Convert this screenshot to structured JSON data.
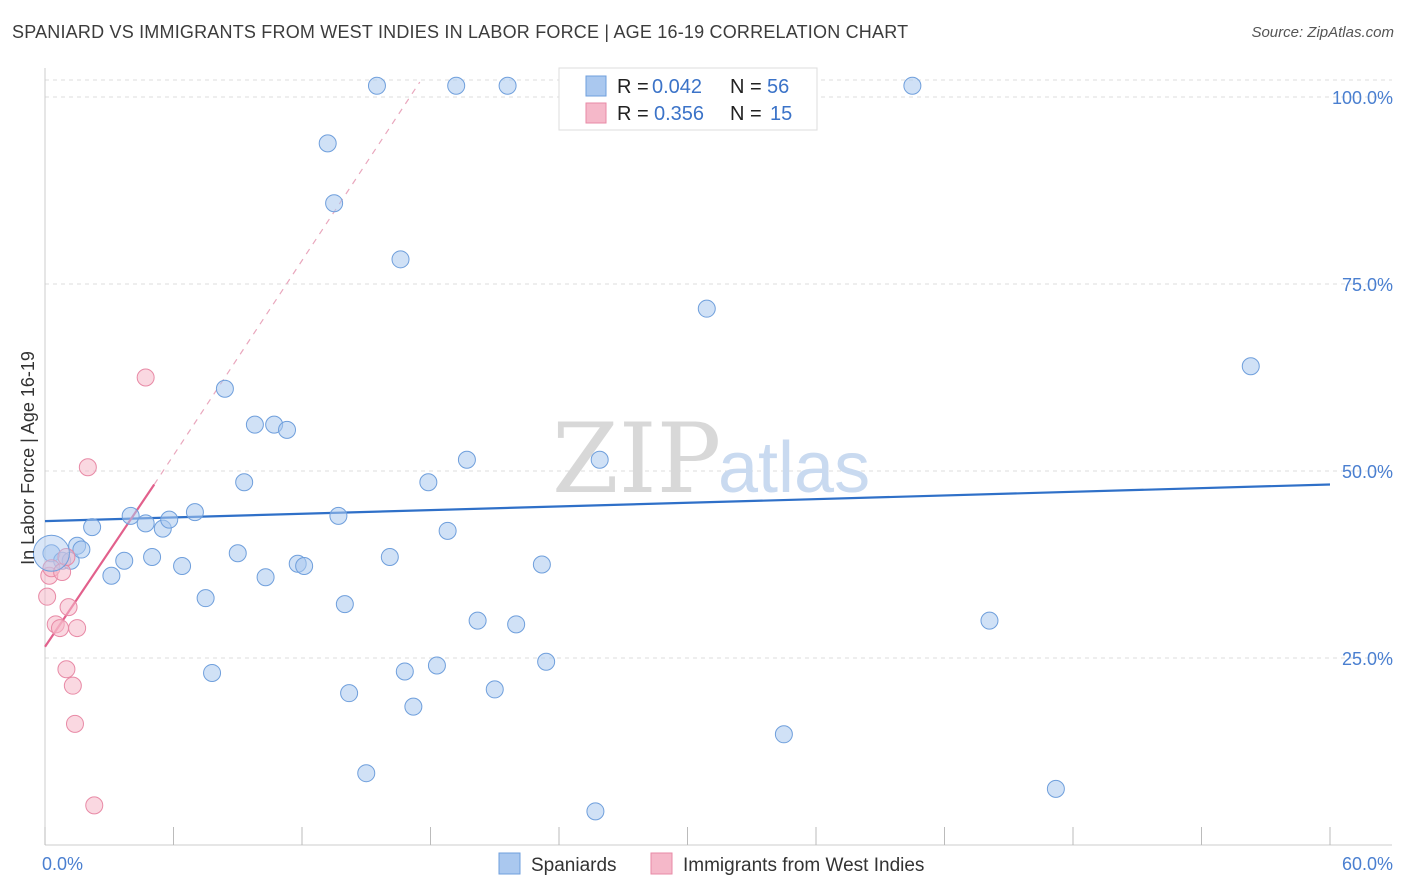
{
  "title": "SPANIARD VS IMMIGRANTS FROM WEST INDIES IN LABOR FORCE | AGE 16-19 CORRELATION CHART",
  "source": "Source: ZipAtlas.com",
  "watermark": {
    "zip": "ZIP",
    "atlas": "atlas"
  },
  "colors": {
    "blue_fill": "#aac8ef",
    "blue_stroke": "#6f9fdc",
    "blue_line": "#2f70c8",
    "pink_fill": "#f5b8c9",
    "pink_stroke": "#e88aa6",
    "pink_line": "#e2608c",
    "grid": "#dddddd",
    "axis_label": "#4a7fd0"
  },
  "legend": {
    "rows": [
      {
        "r_label": "R = ",
        "r_value": "0.042",
        "n_label": "N = ",
        "n_value": "56",
        "series": "blue"
      },
      {
        "r_label": "R = ",
        "r_value": "0.356",
        "n_label": "N = ",
        "n_value": "15",
        "series": "pink"
      }
    ]
  },
  "bottom_legend": [
    {
      "label": "Spaniards",
      "series": "blue"
    },
    {
      "label": "Immigrants from West Indies",
      "series": "pink"
    }
  ],
  "chart_data": {
    "type": "scatter",
    "title": "SPANIARD VS IMMIGRANTS FROM WEST INDIES IN LABOR FORCE | AGE 16-19 CORRELATION CHART",
    "xlabel": "",
    "ylabel": "In Labor Force | Age 16-19",
    "xlim": [
      0,
      60
    ],
    "ylim": [
      0,
      100
    ],
    "x_tick_labels": [
      {
        "value": 0,
        "label": "0.0%"
      },
      {
        "value": 60,
        "label": "60.0%"
      }
    ],
    "y_tick_labels": [
      {
        "value": 25,
        "label": "25.0%"
      },
      {
        "value": 50,
        "label": "50.0%"
      },
      {
        "value": 75,
        "label": "75.0%"
      },
      {
        "value": 100,
        "label": "100.0%"
      }
    ],
    "x_minor_ticks": [
      0,
      6,
      12,
      18,
      24,
      30,
      36,
      42,
      48,
      54,
      60
    ],
    "grid": true,
    "legend_position": "top-center",
    "series": [
      {
        "name": "Spaniards",
        "color": "blue",
        "points": [
          [
            0.3,
            39
          ],
          [
            0.8,
            38
          ],
          [
            1.2,
            38
          ],
          [
            1.5,
            40
          ],
          [
            1.7,
            39.5
          ],
          [
            2.2,
            42.5
          ],
          [
            3.1,
            36
          ],
          [
            3.7,
            38
          ],
          [
            4.0,
            44
          ],
          [
            4.7,
            43
          ],
          [
            5.0,
            38.5
          ],
          [
            5.5,
            42.3
          ],
          [
            5.8,
            43.5
          ],
          [
            6.4,
            37.3
          ],
          [
            7.0,
            44.5
          ],
          [
            7.5,
            33
          ],
          [
            7.8,
            23
          ],
          [
            8.4,
            61
          ],
          [
            9.0,
            39
          ],
          [
            9.3,
            48.5
          ],
          [
            9.8,
            56.2
          ],
          [
            10.3,
            35.8
          ],
          [
            10.7,
            56.2
          ],
          [
            11.3,
            55.5
          ],
          [
            11.8,
            37.6
          ],
          [
            12.1,
            37.3
          ],
          [
            13.2,
            93.8
          ],
          [
            13.5,
            85.8
          ],
          [
            13.7,
            44
          ],
          [
            14.0,
            32.2
          ],
          [
            14.2,
            20.3
          ],
          [
            15.0,
            9.6
          ],
          [
            15.5,
            101.5
          ],
          [
            16.1,
            38.5
          ],
          [
            16.6,
            78.3
          ],
          [
            16.8,
            23.2
          ],
          [
            17.2,
            18.5
          ],
          [
            17.9,
            48.5
          ],
          [
            18.3,
            24
          ],
          [
            18.8,
            42
          ],
          [
            19.2,
            101.5
          ],
          [
            19.7,
            51.5
          ],
          [
            20.2,
            30
          ],
          [
            21.0,
            20.8
          ],
          [
            21.6,
            101.5
          ],
          [
            22.0,
            29.5
          ],
          [
            23.2,
            37.5
          ],
          [
            23.4,
            24.5
          ],
          [
            25.7,
            4.5
          ],
          [
            25.9,
            51.5
          ],
          [
            30.9,
            71.7
          ],
          [
            34.5,
            14.8
          ],
          [
            40.5,
            101.5
          ],
          [
            44.1,
            30
          ],
          [
            47.2,
            7.5
          ],
          [
            56.3,
            64
          ]
        ],
        "trend": {
          "x": [
            0,
            60
          ],
          "y": [
            43.3,
            48.2
          ],
          "style": "solid"
        }
      },
      {
        "name": "Immigrants from West Indies",
        "color": "pink",
        "points": [
          [
            0.1,
            33.2
          ],
          [
            0.2,
            36
          ],
          [
            0.3,
            37
          ],
          [
            0.5,
            29.5
          ],
          [
            0.7,
            29
          ],
          [
            0.8,
            36.5
          ],
          [
            1.0,
            23.5
          ],
          [
            1.0,
            38.5
          ],
          [
            1.1,
            31.8
          ],
          [
            1.3,
            21.3
          ],
          [
            1.4,
            16.2
          ],
          [
            1.5,
            29
          ],
          [
            2.0,
            50.5
          ],
          [
            2.3,
            5.3
          ],
          [
            4.7,
            62.5
          ]
        ],
        "trend": {
          "x": [
            0,
            5.1
          ],
          "y": [
            26.5,
            48.2
          ],
          "style": "solid"
        },
        "trend_extension": {
          "x": [
            5.1,
            17.5
          ],
          "y": [
            48.2,
            102
          ],
          "style": "dashed"
        }
      }
    ]
  }
}
